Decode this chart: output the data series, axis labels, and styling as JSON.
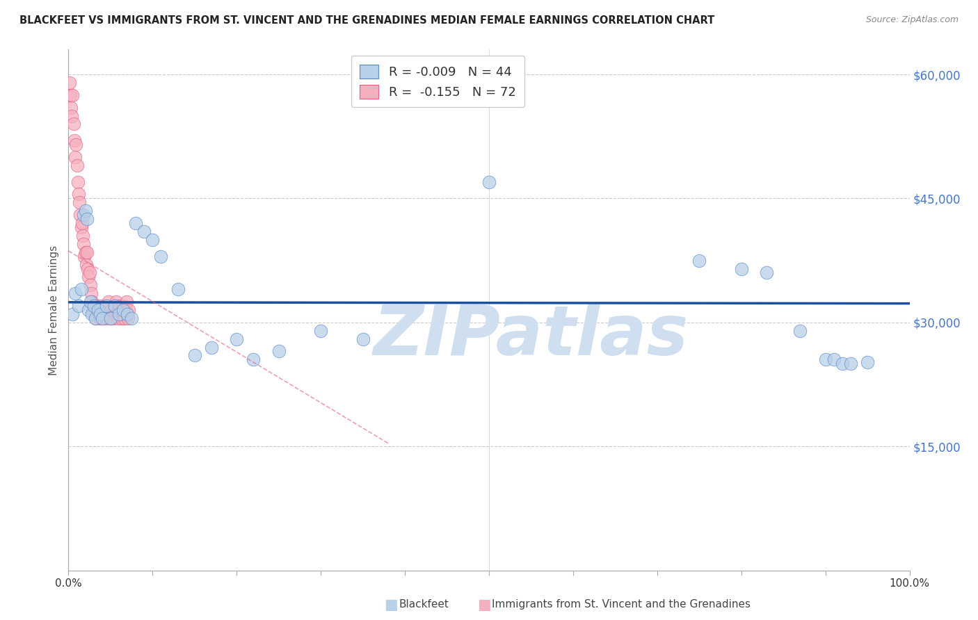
{
  "title": "BLACKFEET VS IMMIGRANTS FROM ST. VINCENT AND THE GRENADINES MEDIAN FEMALE EARNINGS CORRELATION CHART",
  "source": "Source: ZipAtlas.com",
  "ylabel": "Median Female Earnings",
  "xlim": [
    0,
    1.0
  ],
  "ylim": [
    0,
    63000
  ],
  "yticks": [
    0,
    15000,
    30000,
    45000,
    60000
  ],
  "xticks": [
    0,
    0.1,
    0.2,
    0.3,
    0.4,
    0.5,
    0.6,
    0.7,
    0.8,
    0.9,
    1.0
  ],
  "blue_fill": "#b8d0e8",
  "blue_edge": "#5588cc",
  "pink_fill": "#f5b0c0",
  "pink_edge": "#e06080",
  "trend_blue": "#1a4fa0",
  "trend_pink": "#e06080",
  "R_blue": -0.009,
  "N_blue": 44,
  "R_pink": -0.155,
  "N_pink": 72,
  "watermark": "ZIPatlas",
  "watermark_color": "#d0dff0",
  "blue_x": [
    0.005,
    0.008,
    0.012,
    0.015,
    0.018,
    0.02,
    0.022,
    0.024,
    0.026,
    0.028,
    0.03,
    0.032,
    0.035,
    0.038,
    0.04,
    0.045,
    0.05,
    0.055,
    0.06,
    0.065,
    0.07,
    0.075,
    0.08,
    0.09,
    0.1,
    0.11,
    0.13,
    0.15,
    0.17,
    0.2,
    0.22,
    0.25,
    0.3,
    0.35,
    0.5,
    0.75,
    0.8,
    0.83,
    0.87,
    0.9,
    0.91,
    0.92,
    0.93,
    0.95
  ],
  "blue_y": [
    31000,
    33500,
    32000,
    34000,
    43000,
    43500,
    42500,
    31500,
    32500,
    31000,
    32000,
    30500,
    31500,
    31000,
    30500,
    32000,
    30500,
    32000,
    31000,
    31500,
    31000,
    30500,
    42000,
    41000,
    40000,
    38000,
    34000,
    26000,
    27000,
    28000,
    25500,
    26500,
    29000,
    28000,
    47000,
    37500,
    36500,
    36000,
    29000,
    25500,
    25500,
    25000,
    25000,
    25200
  ],
  "pink_x": [
    0.001,
    0.002,
    0.003,
    0.004,
    0.005,
    0.006,
    0.007,
    0.008,
    0.009,
    0.01,
    0.011,
    0.012,
    0.013,
    0.014,
    0.015,
    0.016,
    0.017,
    0.018,
    0.019,
    0.02,
    0.021,
    0.022,
    0.023,
    0.024,
    0.025,
    0.026,
    0.027,
    0.028,
    0.029,
    0.03,
    0.031,
    0.032,
    0.033,
    0.034,
    0.035,
    0.036,
    0.037,
    0.038,
    0.039,
    0.04,
    0.041,
    0.042,
    0.043,
    0.044,
    0.045,
    0.046,
    0.047,
    0.048,
    0.049,
    0.05,
    0.051,
    0.052,
    0.053,
    0.054,
    0.055,
    0.056,
    0.057,
    0.058,
    0.059,
    0.06,
    0.061,
    0.062,
    0.063,
    0.064,
    0.065,
    0.066,
    0.067,
    0.068,
    0.069,
    0.07,
    0.071,
    0.072
  ],
  "pink_y": [
    59000,
    57500,
    56000,
    55000,
    57500,
    54000,
    52000,
    50000,
    51500,
    49000,
    47000,
    45500,
    44500,
    43000,
    41500,
    42000,
    40500,
    39500,
    38000,
    38500,
    37000,
    38500,
    36500,
    35500,
    36000,
    34500,
    33500,
    32500,
    31500,
    31000,
    32000,
    31500,
    30500,
    31500,
    32000,
    31000,
    31500,
    30500,
    31000,
    32000,
    31000,
    30500,
    31500,
    32000,
    31000,
    30500,
    31500,
    32500,
    31000,
    30500,
    31500,
    31000,
    30500,
    31500,
    32000,
    31000,
    32500,
    31000,
    30500,
    31500,
    32000,
    31000,
    30500,
    31500,
    32000,
    31000,
    30500,
    31500,
    32500,
    31000,
    30500,
    31500
  ]
}
